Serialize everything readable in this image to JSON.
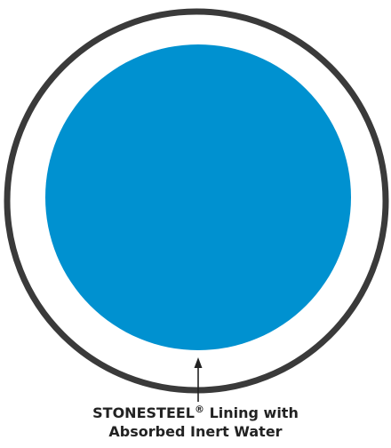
{
  "diagram": {
    "callout": {
      "line1_prefix": "STONESTEEL",
      "line1_mark": "®",
      "line1_suffix": " Lining with",
      "line2": "Absorbed Inert Water"
    }
  },
  "colors": {
    "outer_ring": "#3a3a3a",
    "inner_fill": "#0091d0",
    "lining_gap": "#ffffff",
    "text": "#222222"
  }
}
